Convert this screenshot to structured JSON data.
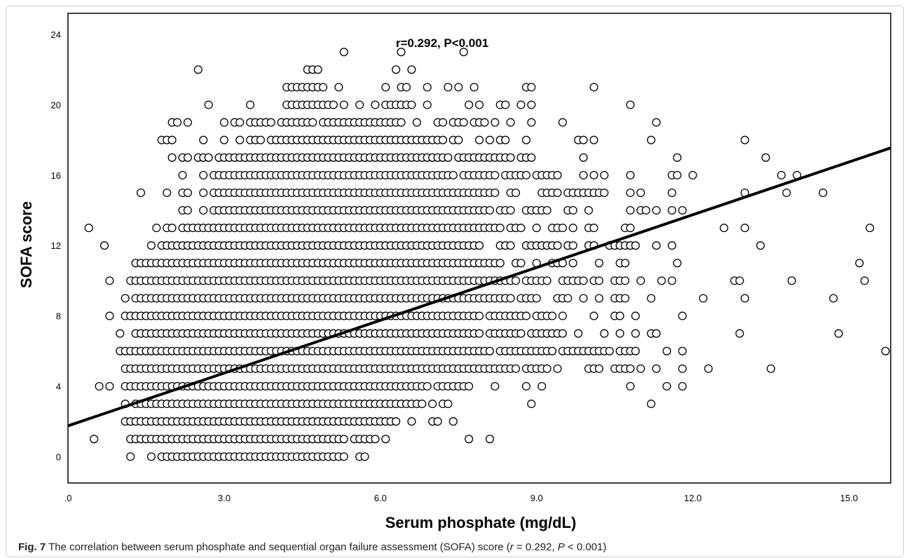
{
  "chart_data": {
    "type": "scatter",
    "title": "r=0.292, P<0.001",
    "xlabel": "Serum phosphate (mg/dL)",
    "ylabel": "SOFA score",
    "xlim": [
      0,
      15.8
    ],
    "ylim": [
      -1.5,
      25.2
    ],
    "xticks": [
      0,
      3,
      6,
      9,
      12,
      15
    ],
    "xtick_labels": [
      ".0",
      "3.0",
      "6.0",
      "9.0",
      "12.0",
      "15.0"
    ],
    "yticks": [
      0,
      4,
      8,
      12,
      16,
      20,
      24
    ],
    "ytick_labels": [
      "0",
      "4",
      "8",
      "12",
      "16",
      "20",
      "24"
    ],
    "grid": false,
    "regression_line": {
      "intercept": 1.75,
      "slope": 1.0
    },
    "rows": [
      {
        "y": 0,
        "segments": [
          [
            1.2,
            1.2
          ],
          [
            1.6,
            1.6
          ],
          [
            1.8,
            5.3
          ],
          [
            5.6,
            5.7
          ]
        ]
      },
      {
        "y": 1,
        "segments": [
          [
            0.5,
            0.5
          ],
          [
            1.2,
            5.3
          ],
          [
            5.5,
            5.9
          ],
          [
            6.1,
            6.1
          ],
          [
            7.7,
            7.7
          ],
          [
            8.1,
            8.1
          ]
        ]
      },
      {
        "y": 2,
        "segments": [
          [
            1.1,
            6.2
          ],
          [
            6.3,
            6.3
          ],
          [
            6.6,
            6.6
          ],
          [
            7.0,
            7.1
          ],
          [
            7.4,
            7.4
          ]
        ]
      },
      {
        "y": 3,
        "segments": [
          [
            1.1,
            1.1
          ],
          [
            1.3,
            6.8
          ],
          [
            7.0,
            7.0
          ],
          [
            7.2,
            7.3
          ],
          [
            8.9,
            8.9
          ],
          [
            11.2,
            11.2
          ]
        ]
      },
      {
        "y": 4,
        "segments": [
          [
            0.6,
            0.6
          ],
          [
            0.8,
            0.8
          ],
          [
            1.1,
            6.9
          ],
          [
            7.1,
            7.7
          ],
          [
            8.2,
            8.2
          ],
          [
            8.8,
            8.8
          ],
          [
            9.1,
            9.1
          ],
          [
            10.8,
            10.8
          ],
          [
            11.5,
            11.5
          ],
          [
            11.8,
            11.8
          ]
        ]
      },
      {
        "y": 5,
        "segments": [
          [
            1.1,
            8.6
          ],
          [
            8.8,
            9.2
          ],
          [
            9.4,
            9.4
          ],
          [
            10.0,
            10.2
          ],
          [
            10.5,
            10.8
          ],
          [
            11.0,
            11.0
          ],
          [
            11.3,
            11.3
          ],
          [
            11.8,
            11.8
          ],
          [
            12.3,
            12.3
          ],
          [
            13.5,
            13.5
          ]
        ]
      },
      {
        "y": 6,
        "segments": [
          [
            1.0,
            8.1
          ],
          [
            8.3,
            9.3
          ],
          [
            9.5,
            10.4
          ],
          [
            10.6,
            10.9
          ],
          [
            11.5,
            11.5
          ],
          [
            11.8,
            11.8
          ],
          [
            15.7,
            15.7
          ]
        ]
      },
      {
        "y": 7,
        "segments": [
          [
            1.0,
            1.0
          ],
          [
            1.3,
            7.9
          ],
          [
            8.1,
            8.7
          ],
          [
            8.9,
            9.5
          ],
          [
            9.8,
            9.8
          ],
          [
            10.3,
            10.3
          ],
          [
            10.6,
            10.6
          ],
          [
            10.9,
            10.9
          ],
          [
            11.2,
            11.3
          ],
          [
            12.9,
            12.9
          ],
          [
            14.8,
            14.8
          ]
        ]
      },
      {
        "y": 8,
        "segments": [
          [
            0.8,
            0.8
          ],
          [
            1.1,
            7.9
          ],
          [
            8.1,
            8.8
          ],
          [
            9.0,
            9.3
          ],
          [
            9.5,
            9.5
          ],
          [
            10.1,
            10.1
          ],
          [
            10.5,
            10.6
          ],
          [
            10.9,
            10.9
          ],
          [
            11.8,
            11.8
          ]
        ]
      },
      {
        "y": 9,
        "segments": [
          [
            1.1,
            1.1
          ],
          [
            1.3,
            8.5
          ],
          [
            8.7,
            9.0
          ],
          [
            9.4,
            9.6
          ],
          [
            9.9,
            9.9
          ],
          [
            10.2,
            10.2
          ],
          [
            10.5,
            10.7
          ],
          [
            11.2,
            11.2
          ],
          [
            12.2,
            12.2
          ],
          [
            13.0,
            13.0
          ],
          [
            14.7,
            14.7
          ]
        ]
      },
      {
        "y": 10,
        "segments": [
          [
            0.8,
            0.8
          ],
          [
            1.2,
            8.6
          ],
          [
            8.8,
            9.2
          ],
          [
            9.5,
            9.9
          ],
          [
            10.1,
            10.2
          ],
          [
            10.5,
            10.7
          ],
          [
            11.0,
            11.0
          ],
          [
            11.4,
            11.4
          ],
          [
            11.6,
            11.6
          ],
          [
            12.8,
            12.9
          ],
          [
            13.9,
            13.9
          ],
          [
            15.3,
            15.3
          ]
        ]
      },
      {
        "y": 11,
        "segments": [
          [
            1.3,
            8.3
          ],
          [
            8.6,
            8.7
          ],
          [
            9.0,
            9.0
          ],
          [
            9.3,
            9.5
          ],
          [
            9.7,
            9.7
          ],
          [
            10.2,
            10.2
          ],
          [
            10.6,
            10.7
          ],
          [
            11.7,
            11.7
          ],
          [
            15.2,
            15.2
          ]
        ]
      },
      {
        "y": 12,
        "segments": [
          [
            0.7,
            0.7
          ],
          [
            1.6,
            1.6
          ],
          [
            1.8,
            7.9
          ],
          [
            8.3,
            8.5
          ],
          [
            8.8,
            9.4
          ],
          [
            9.6,
            9.7
          ],
          [
            10.0,
            10.1
          ],
          [
            10.4,
            10.8
          ],
          [
            10.9,
            10.9
          ],
          [
            11.3,
            11.3
          ],
          [
            11.6,
            11.6
          ],
          [
            13.3,
            13.3
          ]
        ]
      },
      {
        "y": 13,
        "segments": [
          [
            0.4,
            0.4
          ],
          [
            1.7,
            1.7
          ],
          [
            1.9,
            2.0
          ],
          [
            2.2,
            8.3
          ],
          [
            8.5,
            8.7
          ],
          [
            9.0,
            9.0
          ],
          [
            9.3,
            9.5
          ],
          [
            9.7,
            9.7
          ],
          [
            10.0,
            10.1
          ],
          [
            10.7,
            10.8
          ],
          [
            12.6,
            12.6
          ],
          [
            13.0,
            13.0
          ],
          [
            15.4,
            15.4
          ]
        ]
      },
      {
        "y": 14,
        "segments": [
          [
            2.2,
            2.3
          ],
          [
            2.6,
            2.6
          ],
          [
            2.8,
            8.1
          ],
          [
            8.3,
            8.5
          ],
          [
            8.8,
            9.2
          ],
          [
            9.6,
            9.7
          ],
          [
            10.0,
            10.0
          ],
          [
            10.8,
            10.8
          ],
          [
            11.0,
            11.1
          ],
          [
            11.3,
            11.3
          ],
          [
            11.6,
            11.6
          ],
          [
            11.8,
            11.8
          ]
        ]
      },
      {
        "y": 15,
        "segments": [
          [
            1.4,
            1.4
          ],
          [
            1.9,
            1.9
          ],
          [
            2.2,
            2.3
          ],
          [
            2.6,
            2.6
          ],
          [
            2.8,
            8.2
          ],
          [
            8.5,
            8.6
          ],
          [
            9.1,
            9.4
          ],
          [
            9.6,
            10.3
          ],
          [
            10.8,
            10.8
          ],
          [
            11.0,
            11.0
          ],
          [
            11.6,
            11.6
          ],
          [
            13.0,
            13.0
          ],
          [
            13.8,
            13.8
          ],
          [
            14.5,
            14.5
          ]
        ]
      },
      {
        "y": 16,
        "segments": [
          [
            2.2,
            2.2
          ],
          [
            2.6,
            2.6
          ],
          [
            2.8,
            7.4
          ],
          [
            7.6,
            8.2
          ],
          [
            8.4,
            8.8
          ],
          [
            9.0,
            9.4
          ],
          [
            9.9,
            9.9
          ],
          [
            10.1,
            10.1
          ],
          [
            10.3,
            10.3
          ],
          [
            10.8,
            10.8
          ],
          [
            11.6,
            11.7
          ],
          [
            12.0,
            12.0
          ],
          [
            13.7,
            13.7
          ],
          [
            14.0,
            14.0
          ]
        ]
      },
      {
        "y": 17,
        "segments": [
          [
            2.0,
            2.0
          ],
          [
            2.2,
            2.3
          ],
          [
            2.5,
            2.7
          ],
          [
            2.9,
            7.3
          ],
          [
            7.5,
            8.5
          ],
          [
            8.7,
            8.9
          ],
          [
            9.9,
            9.9
          ],
          [
            11.7,
            11.7
          ],
          [
            13.4,
            13.4
          ]
        ]
      },
      {
        "y": 18,
        "segments": [
          [
            1.8,
            2.0
          ],
          [
            2.6,
            2.6
          ],
          [
            3.0,
            3.0
          ],
          [
            3.3,
            3.3
          ],
          [
            3.5,
            3.7
          ],
          [
            3.9,
            7.2
          ],
          [
            7.4,
            7.5
          ],
          [
            7.9,
            7.9
          ],
          [
            8.1,
            8.1
          ],
          [
            8.3,
            8.4
          ],
          [
            8.8,
            8.8
          ],
          [
            9.8,
            9.9
          ],
          [
            10.1,
            10.1
          ],
          [
            11.2,
            11.2
          ],
          [
            13.0,
            13.0
          ]
        ]
      },
      {
        "y": 19,
        "segments": [
          [
            2.0,
            2.1
          ],
          [
            2.3,
            2.3
          ],
          [
            3.0,
            3.0
          ],
          [
            3.2,
            3.3
          ],
          [
            3.5,
            3.9
          ],
          [
            4.1,
            4.5
          ],
          [
            4.6,
            4.7
          ],
          [
            4.9,
            5.9
          ],
          [
            6.0,
            6.1
          ],
          [
            6.2,
            6.3
          ],
          [
            6.4,
            6.4
          ],
          [
            6.7,
            6.7
          ],
          [
            7.1,
            7.2
          ],
          [
            7.4,
            7.6
          ],
          [
            7.8,
            8.0
          ],
          [
            8.2,
            8.2
          ],
          [
            8.5,
            8.5
          ],
          [
            8.9,
            8.9
          ],
          [
            9.5,
            9.5
          ],
          [
            11.3,
            11.3
          ]
        ]
      },
      {
        "y": 20,
        "segments": [
          [
            2.7,
            2.7
          ],
          [
            3.5,
            3.5
          ],
          [
            4.2,
            4.7
          ],
          [
            4.8,
            4.9
          ],
          [
            5.0,
            5.1
          ],
          [
            5.3,
            5.3
          ],
          [
            5.6,
            5.6
          ],
          [
            5.9,
            5.9
          ],
          [
            6.1,
            6.2
          ],
          [
            6.3,
            6.4
          ],
          [
            6.5,
            6.6
          ],
          [
            6.9,
            6.9
          ],
          [
            7.7,
            7.7
          ],
          [
            7.9,
            7.9
          ],
          [
            8.3,
            8.3
          ],
          [
            8.4,
            8.4
          ],
          [
            8.7,
            8.7
          ],
          [
            8.9,
            8.9
          ],
          [
            10.8,
            10.8
          ]
        ]
      },
      {
        "y": 21,
        "segments": [
          [
            4.2,
            4.6
          ],
          [
            4.7,
            4.9
          ],
          [
            5.2,
            5.2
          ],
          [
            6.1,
            6.1
          ],
          [
            6.4,
            6.5
          ],
          [
            6.9,
            6.9
          ],
          [
            7.3,
            7.3
          ],
          [
            7.5,
            7.5
          ],
          [
            7.8,
            7.8
          ],
          [
            8.8,
            8.9
          ],
          [
            10.1,
            10.1
          ]
        ]
      },
      {
        "y": 22,
        "segments": [
          [
            2.5,
            2.5
          ],
          [
            4.6,
            4.8
          ],
          [
            6.3,
            6.3
          ],
          [
            6.6,
            6.6
          ]
        ]
      },
      {
        "y": 23,
        "segments": [
          [
            5.3,
            5.3
          ],
          [
            6.4,
            6.4
          ],
          [
            7.6,
            7.6
          ]
        ]
      }
    ]
  },
  "caption": {
    "label": "Fig. 7",
    "text": "The correlation between serum phosphate and sequential organ failure assessment (SOFA) score (",
    "r_symbol": "r",
    "r_rest": " = 0.292, ",
    "p_symbol": "P",
    "p_rest": " < 0.001)"
  }
}
